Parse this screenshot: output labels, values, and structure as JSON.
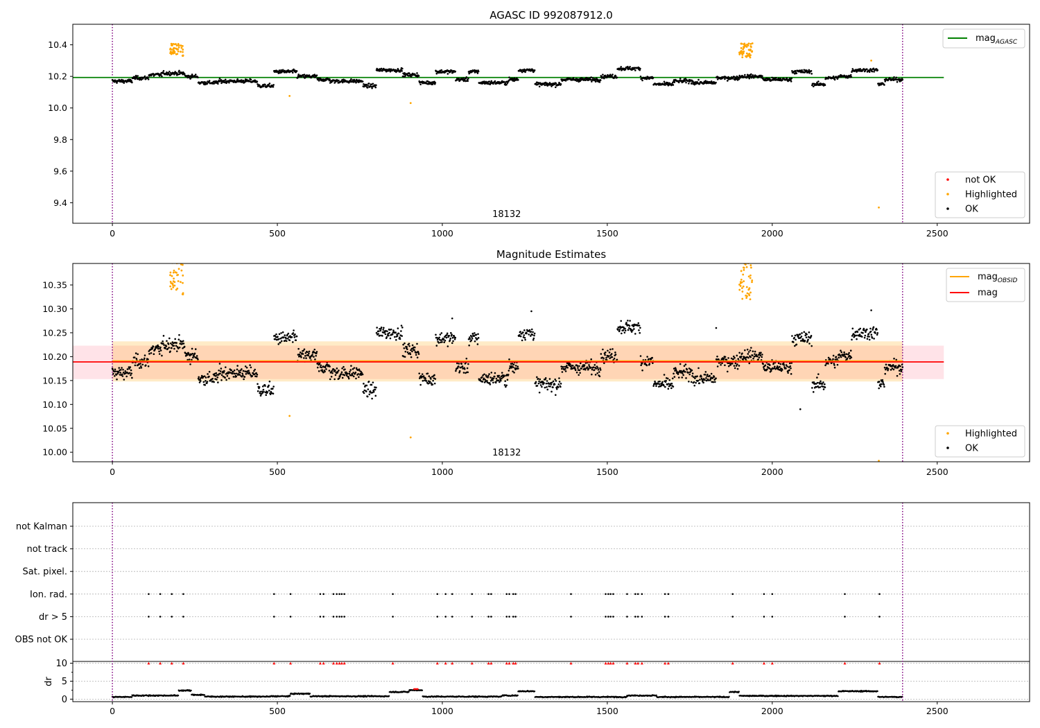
{
  "chart_data": [
    {
      "id": "agasc",
      "type": "scatter",
      "title": "AGASC ID 992087912.0",
      "xlim": [
        -120,
        2780
      ],
      "ylim": [
        9.27,
        10.53
      ],
      "xticks": [
        0,
        500,
        1000,
        1500,
        2000,
        2500
      ],
      "yticks": [
        9.4,
        9.6,
        9.8,
        10.0,
        10.2,
        10.4
      ],
      "ytick_labels": [
        "9.4",
        "9.6",
        "9.8",
        "10.0",
        "10.2",
        "10.4"
      ],
      "obsid_label": "18132",
      "obsid_label_x": 1195,
      "vlines": [
        0,
        2395
      ],
      "hlines": [
        {
          "name": "mag_AGASC",
          "y": 10.193,
          "x": [
            -120,
            2520
          ],
          "color": "#008000"
        }
      ],
      "legend_lines": [
        {
          "label": "mag",
          "sub": "AGASC",
          "color": "#008000"
        }
      ],
      "legend_markers": [
        {
          "label": "not OK",
          "color": "#ff0000"
        },
        {
          "label": "Highlighted",
          "color": "#ffa500"
        },
        {
          "label": "OK",
          "color": "#000000"
        }
      ],
      "baseline": 10.18,
      "segments": [
        [
          0,
          60,
          10.17
        ],
        [
          60,
          110,
          10.19
        ],
        [
          110,
          150,
          10.21
        ],
        [
          150,
          220,
          10.22
        ],
        [
          220,
          260,
          10.2
        ],
        [
          260,
          320,
          10.16
        ],
        [
          320,
          440,
          10.17
        ],
        [
          440,
          490,
          10.14
        ],
        [
          490,
          560,
          10.23
        ],
        [
          560,
          620,
          10.2
        ],
        [
          620,
          660,
          10.18
        ],
        [
          660,
          760,
          10.17
        ],
        [
          760,
          800,
          10.14
        ],
        [
          800,
          880,
          10.24
        ],
        [
          880,
          930,
          10.21
        ],
        [
          930,
          980,
          10.16
        ],
        [
          980,
          1040,
          10.23
        ],
        [
          1040,
          1080,
          10.18
        ],
        [
          1080,
          1110,
          10.23
        ],
        [
          1110,
          1200,
          10.16
        ],
        [
          1200,
          1230,
          10.18
        ],
        [
          1230,
          1280,
          10.24
        ],
        [
          1280,
          1360,
          10.15
        ],
        [
          1360,
          1480,
          10.18
        ],
        [
          1480,
          1530,
          10.2
        ],
        [
          1530,
          1600,
          10.25
        ],
        [
          1600,
          1640,
          10.19
        ],
        [
          1640,
          1700,
          10.15
        ],
        [
          1700,
          1760,
          10.17
        ],
        [
          1760,
          1830,
          10.16
        ],
        [
          1830,
          1900,
          10.19
        ],
        [
          1900,
          1970,
          10.2
        ],
        [
          1970,
          2060,
          10.18
        ],
        [
          2060,
          2120,
          10.23
        ],
        [
          2120,
          2160,
          10.15
        ],
        [
          2160,
          2200,
          10.19
        ],
        [
          2200,
          2240,
          10.2
        ],
        [
          2240,
          2320,
          10.24
        ],
        [
          2320,
          2340,
          10.15
        ],
        [
          2340,
          2395,
          10.18
        ]
      ],
      "noise": 0.022,
      "highlight_clusters": [
        {
          "x": [
            175,
            215
          ],
          "y": [
            10.33,
            10.41
          ],
          "n": 45
        },
        {
          "x": [
            1900,
            1940
          ],
          "y": [
            10.32,
            10.41
          ],
          "n": 50
        }
      ],
      "highlight_points": [
        [
          537,
          10.076
        ],
        [
          904,
          10.031
        ],
        [
          2300,
          10.3
        ],
        [
          2323,
          9.37
        ]
      ]
    },
    {
      "id": "estimates",
      "type": "scatter",
      "title": "Magnitude Estimates",
      "xlim": [
        -120,
        2780
      ],
      "ylim": [
        9.98,
        10.395
      ],
      "xticks": [
        0,
        500,
        1000,
        1500,
        2000,
        2500
      ],
      "yticks": [
        10.0,
        10.05,
        10.1,
        10.15,
        10.2,
        10.25,
        10.3,
        10.35
      ],
      "ytick_labels": [
        "10.00",
        "10.05",
        "10.10",
        "10.15",
        "10.20",
        "10.25",
        "10.30",
        "10.35"
      ],
      "obsid_label": "18132",
      "obsid_label_x": 1195,
      "vlines": [
        0,
        2395
      ],
      "bands": [
        {
          "x": [
            -120,
            2520
          ],
          "y": [
            10.153,
            10.223
          ],
          "color": "#ffc0cb",
          "opacity": 0.45
        },
        {
          "x": [
            0,
            2395
          ],
          "y": [
            10.148,
            10.232
          ],
          "color": "#ffa500",
          "opacity": 0.22
        }
      ],
      "hlines": [
        {
          "name": "mag_OBSID",
          "y": 10.191,
          "x": [
            0,
            2395
          ],
          "color": "#ffa500"
        },
        {
          "name": "mag",
          "y": 10.189,
          "x": [
            -120,
            2520
          ],
          "color": "#ff0000"
        }
      ],
      "legend_lines": [
        {
          "label": "mag",
          "sub": "OBSID",
          "color": "#ffa500"
        },
        {
          "label": "mag",
          "sub": "",
          "color": "#ff0000"
        }
      ],
      "legend_markers": [
        {
          "label": "Highlighted",
          "color": "#ffa500"
        },
        {
          "label": "OK",
          "color": "#000000"
        }
      ],
      "outliers": [
        [
          2085,
          10.09
        ],
        [
          1830,
          10.26
        ],
        [
          1270,
          10.295
        ],
        [
          2300,
          10.297
        ],
        [
          1030,
          10.28
        ]
      ],
      "highlight_points": [
        [
          537,
          10.076
        ],
        [
          904,
          10.031
        ],
        [
          2323,
          9.982
        ]
      ]
    },
    {
      "id": "flags",
      "type": "scatter",
      "xlim": [
        -120,
        2780
      ],
      "categories": [
        "not Kalman",
        "not track",
        "Sat. pixel.",
        "Ion. rad.",
        "dr > 5",
        "OBS not OK"
      ],
      "flag_x": [
        110,
        145,
        180,
        215,
        490,
        540,
        630,
        640,
        670,
        680,
        688,
        695,
        703,
        850,
        985,
        1010,
        1030,
        1090,
        1140,
        1148,
        1195,
        1203,
        1215,
        1222,
        1390,
        1495,
        1503,
        1510,
        1518,
        1560,
        1585,
        1593,
        1605,
        1675,
        1685,
        1880,
        1975,
        2000,
        2220,
        2325
      ],
      "dr_yticks": [
        0,
        5,
        10
      ],
      "dr_ylabel": "dr",
      "dr_threshold": 10,
      "dr_ylim": [
        -0.7,
        10.5
      ],
      "dr_xticks": [
        0,
        500,
        1000,
        1500,
        2000,
        2500
      ],
      "vlines": [
        0,
        2395
      ],
      "dr_segments": [
        [
          0,
          60,
          0.6
        ],
        [
          60,
          200,
          1.0
        ],
        [
          200,
          240,
          2.4
        ],
        [
          240,
          280,
          1.2
        ],
        [
          280,
          480,
          0.7
        ],
        [
          480,
          540,
          0.8
        ],
        [
          540,
          600,
          1.5
        ],
        [
          600,
          840,
          0.8
        ],
        [
          840,
          900,
          2.0
        ],
        [
          900,
          940,
          2.5
        ],
        [
          940,
          1180,
          0.7
        ],
        [
          1180,
          1230,
          1.0
        ],
        [
          1230,
          1280,
          2.2
        ],
        [
          1280,
          1560,
          0.6
        ],
        [
          1560,
          1650,
          1.0
        ],
        [
          1650,
          1870,
          0.6
        ],
        [
          1870,
          1900,
          2.0
        ],
        [
          1900,
          2200,
          0.9
        ],
        [
          2200,
          2320,
          2.2
        ],
        [
          2320,
          2395,
          0.6
        ]
      ]
    }
  ]
}
